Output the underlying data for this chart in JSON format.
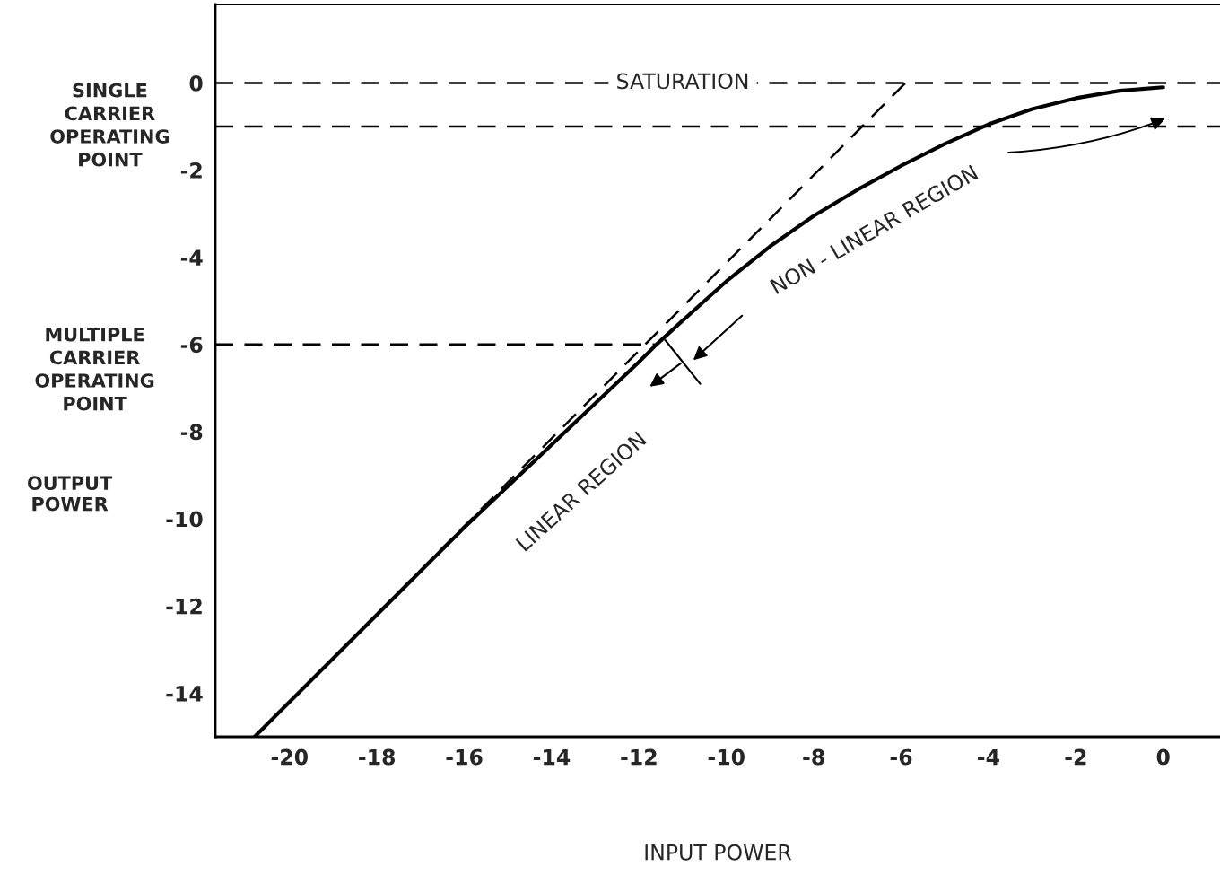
{
  "chart_data": {
    "type": "line",
    "xlabel": "INPUT POWER",
    "ylabel": "OUTPUT\nPOWER",
    "xlim": [
      -21.7,
      1.3
    ],
    "ylim": [
      -15,
      1.8
    ],
    "xticks": [
      -20,
      -18,
      -16,
      -14,
      -12,
      -10,
      -8,
      -6,
      -4,
      -2,
      0
    ],
    "yticks": [
      0,
      -2,
      -4,
      -6,
      -8,
      -10,
      -12,
      -14
    ],
    "grid": false,
    "marker": "none",
    "series": [
      {
        "color": "#000000",
        "line_style": "solid",
        "x": [
          -20.8,
          -18,
          -16,
          -14,
          -12,
          -11.6,
          -11,
          -10.5,
          -10,
          -9,
          -8,
          -7,
          -6,
          -5,
          -4,
          -3,
          -2,
          -1,
          0
        ],
        "values": [
          -15,
          -12.2,
          -10.2,
          -8.3,
          -6.4,
          -6,
          -5.45,
          -5.0,
          -4.55,
          -3.75,
          -3.05,
          -2.45,
          -1.9,
          -1.4,
          -0.95,
          -0.6,
          -0.35,
          -0.18,
          -0.1
        ]
      },
      {
        "color": "#000000",
        "line_style": "dashed",
        "x": [
          -20.8,
          -5.9
        ],
        "values": [
          -15,
          0
        ]
      },
      {
        "color": "#000000",
        "line_style": "dashed",
        "x": [
          -21.7,
          -11.6
        ],
        "values": [
          -6,
          -6
        ]
      }
    ],
    "ref_lines": [
      {
        "axis": "y",
        "value": 0,
        "label": "SATURATION",
        "line_style": "dashed",
        "color": "#000000"
      },
      {
        "axis": "y",
        "value": -1,
        "label": "SINGLE\nCARRIER\nOPERATING\nPOINT",
        "line_style": "dashed",
        "color": "#000000"
      }
    ],
    "annotations": [
      "LINEAR REGION",
      "NON - LINEAR REGION",
      "MULTIPLE\nCARRIER\nOPERATING\nPOINT"
    ]
  }
}
